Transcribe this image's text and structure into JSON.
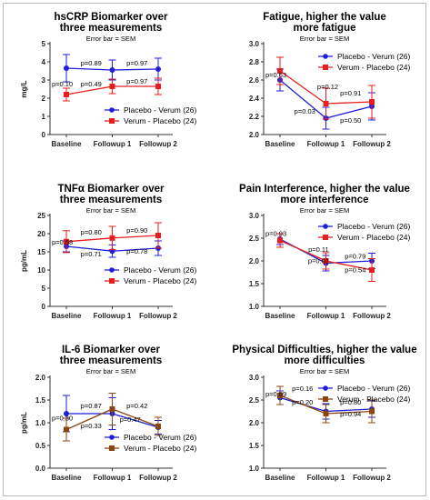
{
  "chart_data": [
    {
      "type": "line",
      "title": [
        "hsCRP Biomarker over",
        "three measurements"
      ],
      "subtitle": "Error bar = SEM",
      "ylabel": "mg/L",
      "ylim": [
        0,
        5
      ],
      "yticks": [
        "0",
        "1",
        "2",
        "3",
        "4",
        "5"
      ],
      "categories": [
        "Baseline",
        "Followup 1",
        "Followup 2"
      ],
      "legend_position": "bottom-right",
      "series": [
        {
          "name": "Placebo - Verum (26)",
          "color": "#1f1fd8",
          "marker": "circle",
          "values": [
            3.65,
            3.55,
            3.6
          ],
          "errors": [
            0.75,
            0.55,
            0.6
          ]
        },
        {
          "name": "Verum - Placebo (24)",
          "color": "#e61e1e",
          "marker": "square",
          "values": [
            2.2,
            2.65,
            2.65
          ],
          "errors": [
            0.35,
            0.4,
            0.45
          ]
        }
      ],
      "annotations": [
        {
          "text": "p=0.89",
          "x": 0.5,
          "y": 3.8
        },
        {
          "text": "p=0.97",
          "x": 1.5,
          "y": 3.8
        },
        {
          "text": "p=0.10",
          "x": 0,
          "y": 2.65
        },
        {
          "text": "p=0.49",
          "x": 0.5,
          "y": 2.65
        },
        {
          "text": "p=0.97",
          "x": 1.5,
          "y": 2.8
        }
      ]
    },
    {
      "type": "line",
      "title": [
        "Fatigue, higher the value",
        "more fatigue"
      ],
      "subtitle": "Error bar = SEM",
      "ylabel": "",
      "ylim": [
        2.0,
        3.0
      ],
      "yticks": [
        "2.0",
        "2.2",
        "2.4",
        "2.6",
        "2.8",
        "3.0"
      ],
      "categories": [
        "Baseline",
        "Followup 1",
        "Followup 2"
      ],
      "legend_position": "top-right",
      "series": [
        {
          "name": "Placebo - Verum (26)",
          "color": "#1f1fd8",
          "marker": "circle",
          "values": [
            2.6,
            2.18,
            2.31
          ],
          "errors": [
            0.12,
            0.12,
            0.15
          ]
        },
        {
          "name": "Verum - Placebo (24)",
          "color": "#e61e1e",
          "marker": "square",
          "values": [
            2.7,
            2.34,
            2.36
          ],
          "errors": [
            0.15,
            0.17,
            0.18
          ]
        }
      ],
      "annotations": [
        {
          "text": "p=0.63",
          "x": 0,
          "y": 2.63
        },
        {
          "text": "p=0.12",
          "x": 1,
          "y": 2.5
        },
        {
          "text": "p=0.03",
          "x": 0.5,
          "y": 2.23
        },
        {
          "text": "p=0.91",
          "x": 1.5,
          "y": 2.43
        },
        {
          "text": "p=0.50",
          "x": 1.5,
          "y": 2.13
        }
      ]
    },
    {
      "type": "line",
      "title": [
        "TNFα Biomarker over",
        "three measurements"
      ],
      "subtitle": "Error bar = SEM",
      "ylabel": "pg/mL",
      "ylim": [
        0,
        25
      ],
      "yticks": [
        "0",
        "5",
        "10",
        "15",
        "20",
        "25"
      ],
      "categories": [
        "Baseline",
        "Followup 1",
        "Followup 2"
      ],
      "legend_position": "bottom-right",
      "series": [
        {
          "name": "Placebo - Verum (26)",
          "color": "#1f1fd8",
          "marker": "circle",
          "values": [
            16.5,
            15.2,
            16.0
          ],
          "errors": [
            1.5,
            1.7,
            2.0
          ]
        },
        {
          "name": "Verum - Placebo (24)",
          "color": "#e61e1e",
          "marker": "square",
          "values": [
            17.8,
            18.8,
            19.5
          ],
          "errors": [
            3.0,
            3.2,
            3.5
          ]
        }
      ],
      "annotations": [
        {
          "text": "p=0.80",
          "x": 0.5,
          "y": 19.7
        },
        {
          "text": "p=0.90",
          "x": 1.5,
          "y": 20.3
        },
        {
          "text": "p=0.68",
          "x": 0,
          "y": 17.0
        },
        {
          "text": "p=0.71",
          "x": 0.5,
          "y": 13.8
        },
        {
          "text": "p=0.78",
          "x": 1.5,
          "y": 14.5
        }
      ]
    },
    {
      "type": "line",
      "title": [
        "Pain Interference, higher the value",
        "more interference"
      ],
      "subtitle": "Error bar = SEM",
      "ylabel": "",
      "ylim": [
        1.0,
        3.0
      ],
      "yticks": [
        "1.0",
        "1.5",
        "2.0",
        "2.5",
        "3.0"
      ],
      "categories": [
        "Baseline",
        "Followup 1",
        "Followup 2"
      ],
      "legend_position": "top-right",
      "series": [
        {
          "name": "Placebo - Verum (26)",
          "color": "#1f1fd8",
          "marker": "circle",
          "values": [
            2.48,
            1.95,
            2.0
          ],
          "errors": [
            0.12,
            0.17,
            0.17
          ]
        },
        {
          "name": "Verum - Placebo (24)",
          "color": "#e61e1e",
          "marker": "square",
          "values": [
            2.45,
            2.0,
            1.8
          ],
          "errors": [
            0.15,
            0.18,
            0.25
          ]
        }
      ],
      "annotations": [
        {
          "text": "p=0.93",
          "x": 0,
          "y": 2.55
        },
        {
          "text": "p=0.11",
          "x": 0.8,
          "y": 2.2
        },
        {
          "text": "p=0.02",
          "x": 0.8,
          "y": 1.95
        },
        {
          "text": "p=0.79",
          "x": 1.6,
          "y": 2.05
        },
        {
          "text": "p=0.54",
          "x": 1.6,
          "y": 1.75
        }
      ]
    },
    {
      "type": "line",
      "title": [
        "IL-6 Biomarker over",
        "three measurements"
      ],
      "subtitle": "Error bar = SEM",
      "ylabel": "pg/mL",
      "ylim": [
        0,
        2.0
      ],
      "yticks": [
        "0.0",
        "0.5",
        "1.0",
        "1.5",
        "2.0"
      ],
      "categories": [
        "Baseline",
        "Followup 1",
        "Followup 2"
      ],
      "legend_position": "bottom-right",
      "series": [
        {
          "name": "Placebo - Verum (26)",
          "color": "#1f1fd8",
          "marker": "circle",
          "values": [
            1.2,
            1.2,
            0.9
          ],
          "errors": [
            0.4,
            0.35,
            0.15
          ]
        },
        {
          "name": "Verum - Placebo (24)",
          "color": "#8b4513",
          "marker": "square",
          "values": [
            0.85,
            1.3,
            0.92
          ],
          "errors": [
            0.25,
            0.35,
            0.2
          ]
        }
      ],
      "annotations": [
        {
          "text": "p=0.87",
          "x": 0.5,
          "y": 1.32
        },
        {
          "text": "p=0.42",
          "x": 1.5,
          "y": 1.32
        },
        {
          "text": "p=0.30",
          "x": 0,
          "y": 1.05
        },
        {
          "text": "p=0.33",
          "x": 0.5,
          "y": 0.88
        },
        {
          "text": "p=0.47",
          "x": 1.35,
          "y": 1.02
        }
      ]
    },
    {
      "type": "line",
      "title": [
        "Physical Difficulties, higher the value",
        "more difficulties"
      ],
      "subtitle": "Error bar = SEM",
      "ylabel": "",
      "ylim": [
        1.0,
        3.0
      ],
      "yticks": [
        "1.0",
        "1.5",
        "2.0",
        "2.5",
        "3.0"
      ],
      "categories": [
        "Baseline",
        "Followup 1",
        "Followup 2"
      ],
      "legend_position": "top-right",
      "series": [
        {
          "name": "Placebo - Verum (26)",
          "color": "#1f1fd8",
          "marker": "circle",
          "values": [
            2.55,
            2.25,
            2.3
          ],
          "errors": [
            0.15,
            0.17,
            0.18
          ]
        },
        {
          "name": "Verum - Placebo (24)",
          "color": "#8b4513",
          "marker": "square",
          "values": [
            2.6,
            2.2,
            2.25
          ],
          "errors": [
            0.2,
            0.2,
            0.25
          ]
        }
      ],
      "annotations": [
        {
          "text": "p=0.59",
          "x": 0,
          "y": 2.58
        },
        {
          "text": "p=0.16",
          "x": 0.45,
          "y": 2.7
        },
        {
          "text": "p=0.20",
          "x": 0.45,
          "y": 2.4
        },
        {
          "text": "p=0.80",
          "x": 1.5,
          "y": 2.4
        },
        {
          "text": "p=0.94",
          "x": 1.5,
          "y": 2.14
        }
      ]
    }
  ]
}
